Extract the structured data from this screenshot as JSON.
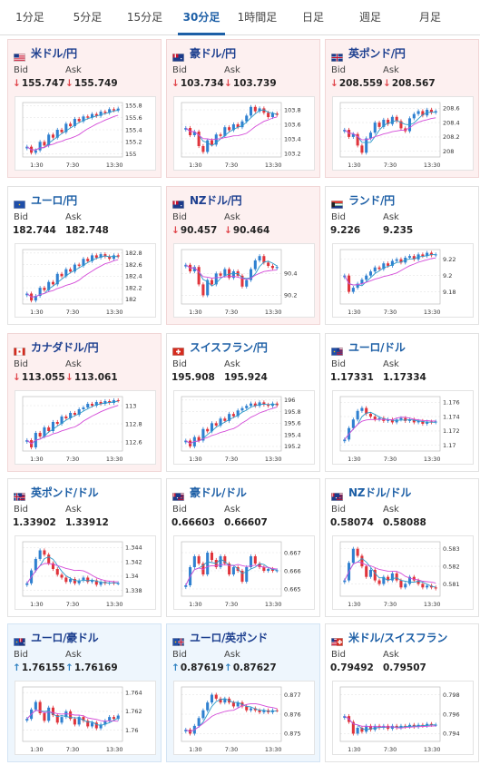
{
  "tabs": [
    {
      "label": "1分足",
      "active": false
    },
    {
      "label": "5分足",
      "active": false
    },
    {
      "label": "15分足",
      "active": false
    },
    {
      "label": "30分足",
      "active": true
    },
    {
      "label": "1時間足",
      "active": false
    },
    {
      "label": "日足",
      "active": false
    },
    {
      "label": "週足",
      "active": false
    },
    {
      "label": "月足",
      "active": false
    }
  ],
  "labels": {
    "bid": "Bid",
    "ask": "Ask"
  },
  "colors": {
    "up_candle": "#2f80d0",
    "down_candle": "#e0343b",
    "ma_short": "#2c9ac9",
    "ma_long": "#d44bd8",
    "down_arrow": "#e0454b",
    "up_arrow": "#2c7fc0"
  },
  "pairs": [
    {
      "name": "米ドル/円",
      "flag": "us",
      "bid": "155.747",
      "ask": "155.749",
      "dir": "down",
      "arrow": "↓"
    },
    {
      "name": "豪ドル/円",
      "flag": "au",
      "bid": "103.734",
      "ask": "103.739",
      "dir": "down",
      "arrow": "↓"
    },
    {
      "name": "英ポンド/円",
      "flag": "gb",
      "bid": "208.559",
      "ask": "208.567",
      "dir": "down",
      "arrow": "↓"
    },
    {
      "name": "ユーロ/円",
      "flag": "eu",
      "bid": "182.744",
      "ask": "182.748",
      "dir": "none",
      "arrow": ""
    },
    {
      "name": "NZドル/円",
      "flag": "nz",
      "bid": "90.457",
      "ask": "90.464",
      "dir": "down",
      "arrow": "↓"
    },
    {
      "name": "ランド/円",
      "flag": "za",
      "bid": "9.226",
      "ask": "9.235",
      "dir": "none",
      "arrow": ""
    },
    {
      "name": "カナダドル/円",
      "flag": "ca",
      "bid": "113.055",
      "ask": "113.061",
      "dir": "down",
      "arrow": "↓"
    },
    {
      "name": "スイスフラン/円",
      "flag": "ch",
      "bid": "195.908",
      "ask": "195.924",
      "dir": "none",
      "arrow": ""
    },
    {
      "name": "ユーロ/ドル",
      "flag": "eu-us",
      "bid": "1.17331",
      "ask": "1.17334",
      "dir": "none",
      "arrow": ""
    },
    {
      "name": "英ポンド/ドル",
      "flag": "gb-us",
      "bid": "1.33902",
      "ask": "1.33912",
      "dir": "none",
      "arrow": ""
    },
    {
      "name": "豪ドル/ドル",
      "flag": "au-us",
      "bid": "0.66603",
      "ask": "0.66607",
      "dir": "none",
      "arrow": ""
    },
    {
      "name": "NZドル/ドル",
      "flag": "nz-us",
      "bid": "0.58074",
      "ask": "0.58088",
      "dir": "none",
      "arrow": ""
    },
    {
      "name": "ユーロ/豪ドル",
      "flag": "eu-au",
      "bid": "1.76155",
      "ask": "1.76169",
      "dir": "up",
      "arrow": "↑"
    },
    {
      "name": "ユーロ/英ポンド",
      "flag": "eu-gb",
      "bid": "0.87619",
      "ask": "0.87627",
      "dir": "up",
      "arrow": "↑"
    },
    {
      "name": "米ドル/スイスフラン",
      "flag": "us-ch",
      "bid": "0.79492",
      "ask": "0.79507",
      "dir": "none",
      "arrow": ""
    }
  ],
  "chart_data": [
    {
      "type": "candlestick",
      "pair": "米ドル/円",
      "x_ticks": [
        "1:30",
        "7:30",
        "13:30"
      ],
      "y_ticks": [
        "155.8",
        "155.6",
        "155.4",
        "155.2",
        "155"
      ],
      "ylim": [
        154.95,
        155.85
      ],
      "close": [
        155.12,
        155.02,
        155.06,
        155.2,
        155.14,
        155.32,
        155.27,
        155.4,
        155.36,
        155.5,
        155.46,
        155.58,
        155.54,
        155.62,
        155.6,
        155.66,
        155.63,
        155.7,
        155.68,
        155.74,
        155.72,
        155.75
      ]
    },
    {
      "type": "candlestick",
      "pair": "豪ドル/円",
      "x_ticks": [
        "1:30",
        "7:30",
        "13:30"
      ],
      "y_ticks": [
        "103.8",
        "103.6",
        "103.4",
        "103.2"
      ],
      "ylim": [
        103.15,
        103.9
      ],
      "close": [
        103.55,
        103.45,
        103.5,
        103.3,
        103.22,
        103.38,
        103.32,
        103.46,
        103.44,
        103.56,
        103.52,
        103.6,
        103.56,
        103.64,
        103.72,
        103.84,
        103.78,
        103.82,
        103.76,
        103.7,
        103.75,
        103.73
      ]
    },
    {
      "type": "candlestick",
      "pair": "英ポンド/円",
      "x_ticks": [
        "1:30",
        "7:30",
        "13:30"
      ],
      "y_ticks": [
        "208.6",
        "208.4",
        "208.2",
        "208"
      ],
      "ylim": [
        207.92,
        208.68
      ],
      "close": [
        208.3,
        208.2,
        208.24,
        208.08,
        207.98,
        208.18,
        208.26,
        208.4,
        208.34,
        208.44,
        208.38,
        208.48,
        208.42,
        208.32,
        208.28,
        208.46,
        208.52,
        208.56,
        208.5,
        208.58,
        208.54,
        208.56
      ]
    },
    {
      "type": "candlestick",
      "pair": "ユーロ/円",
      "x_ticks": [
        "1:30",
        "7:30",
        "13:30"
      ],
      "y_ticks": [
        "182.8",
        "182.6",
        "182.4",
        "182.2",
        "182"
      ],
      "ylim": [
        181.92,
        182.86
      ],
      "close": [
        182.1,
        181.98,
        182.06,
        182.2,
        182.16,
        182.3,
        182.26,
        182.44,
        182.4,
        182.52,
        182.48,
        182.6,
        182.58,
        182.7,
        182.66,
        182.76,
        182.72,
        182.78,
        182.74,
        182.7,
        182.76,
        182.74
      ]
    },
    {
      "type": "candlestick",
      "pair": "NZドル/円",
      "x_ticks": [
        "1:30",
        "7:30",
        "13:30"
      ],
      "y_ticks": [
        "90.4",
        "90.2"
      ],
      "ylim": [
        90.12,
        90.62
      ],
      "close": [
        90.48,
        90.42,
        90.46,
        90.3,
        90.2,
        90.34,
        90.3,
        90.4,
        90.38,
        90.44,
        90.36,
        90.42,
        90.38,
        90.28,
        90.34,
        90.44,
        90.52,
        90.56,
        90.5,
        90.47,
        90.45,
        90.46
      ]
    },
    {
      "type": "candlestick",
      "pair": "ランド/円",
      "x_ticks": [
        "1:30",
        "7:30",
        "13:30"
      ],
      "y_ticks": [
        "9.22",
        "9.2",
        "9.18"
      ],
      "ylim": [
        9.165,
        9.232
      ],
      "close": [
        9.2,
        9.18,
        9.185,
        9.19,
        9.195,
        9.2,
        9.205,
        9.21,
        9.208,
        9.215,
        9.212,
        9.218,
        9.22,
        9.216,
        9.222,
        9.224,
        9.22,
        9.226,
        9.224,
        9.228,
        9.225,
        9.226
      ]
    },
    {
      "type": "candlestick",
      "pair": "カナダドル/円",
      "x_ticks": [
        "1:30",
        "7:30",
        "13:30"
      ],
      "y_ticks": [
        "113",
        "112.8",
        "112.6"
      ],
      "ylim": [
        112.5,
        113.1
      ],
      "close": [
        112.62,
        112.54,
        112.7,
        112.66,
        112.76,
        112.72,
        112.82,
        112.8,
        112.88,
        112.86,
        112.92,
        112.9,
        112.96,
        112.98,
        113.02,
        113.0,
        113.04,
        113.02,
        113.05,
        113.03,
        113.06,
        113.055
      ]
    },
    {
      "type": "candlestick",
      "pair": "スイスフラン/円",
      "x_ticks": [
        "1:30",
        "7:30",
        "13:30"
      ],
      "y_ticks": [
        "196",
        "195.8",
        "195.6",
        "195.4",
        "195.2"
      ],
      "ylim": [
        195.12,
        196.06
      ],
      "close": [
        195.3,
        195.2,
        195.36,
        195.3,
        195.5,
        195.46,
        195.6,
        195.56,
        195.68,
        195.64,
        195.76,
        195.72,
        195.82,
        195.86,
        195.9,
        195.94,
        195.9,
        195.96,
        195.92,
        195.9,
        195.94,
        195.91
      ]
    },
    {
      "type": "candlestick",
      "pair": "ユーロ/ドル",
      "x_ticks": [
        "1:30",
        "7:30",
        "13:30"
      ],
      "y_ticks": [
        "1.176",
        "1.174",
        "1.172",
        "1.17"
      ],
      "ylim": [
        1.1692,
        1.1768
      ],
      "close": [
        1.1708,
        1.1724,
        1.1736,
        1.1748,
        1.1752,
        1.1744,
        1.174,
        1.1736,
        1.1738,
        1.1734,
        1.1736,
        1.1732,
        1.1736,
        1.1738,
        1.1734,
        1.1736,
        1.1732,
        1.1734,
        1.173,
        1.1733,
        1.1732,
        1.17331
      ]
    },
    {
      "type": "candlestick",
      "pair": "英ポンド/ドル",
      "x_ticks": [
        "1:30",
        "7:30",
        "13:30"
      ],
      "y_ticks": [
        "1.344",
        "1.342",
        "1.34",
        "1.338"
      ],
      "ylim": [
        1.3372,
        1.3448
      ],
      "close": [
        1.339,
        1.3408,
        1.3424,
        1.3436,
        1.343,
        1.3418,
        1.341,
        1.3402,
        1.3398,
        1.3392,
        1.3396,
        1.339,
        1.3394,
        1.3398,
        1.3392,
        1.3394,
        1.3388,
        1.3392,
        1.339,
        1.3391,
        1.339,
        1.33902
      ]
    },
    {
      "type": "candlestick",
      "pair": "豪ドル/ドル",
      "x_ticks": [
        "1:30",
        "7:30",
        "13:30"
      ],
      "y_ticks": [
        "0.667",
        "0.666",
        "0.665"
      ],
      "ylim": [
        0.6646,
        0.6676
      ],
      "close": [
        0.6652,
        0.6662,
        0.6668,
        0.6664,
        0.6658,
        0.667,
        0.6666,
        0.6662,
        0.6668,
        0.6664,
        0.6658,
        0.6662,
        0.666,
        0.6654,
        0.6662,
        0.6668,
        0.6664,
        0.6662,
        0.666,
        0.6661,
        0.666,
        0.66603
      ]
    },
    {
      "type": "candlestick",
      "pair": "NZドル/ドル",
      "x_ticks": [
        "1:30",
        "7:30",
        "13:30"
      ],
      "y_ticks": [
        "0.583",
        "0.582",
        "0.581"
      ],
      "ylim": [
        0.5803,
        0.5834
      ],
      "close": [
        0.5812,
        0.5822,
        0.583,
        0.5826,
        0.582,
        0.5814,
        0.5818,
        0.5812,
        0.581,
        0.5814,
        0.5812,
        0.5816,
        0.5812,
        0.5808,
        0.581,
        0.5814,
        0.5812,
        0.581,
        0.5808,
        0.5809,
        0.5808,
        0.58074
      ]
    },
    {
      "type": "candlestick",
      "pair": "ユーロ/豪ドル",
      "x_ticks": [
        "1:30",
        "7:30",
        "13:30"
      ],
      "y_ticks": [
        "1.764",
        "1.762",
        "1.76"
      ],
      "ylim": [
        1.7588,
        1.7646
      ],
      "close": [
        1.7612,
        1.7622,
        1.763,
        1.7618,
        1.761,
        1.7624,
        1.7616,
        1.7608,
        1.7614,
        1.762,
        1.7612,
        1.7606,
        1.7614,
        1.761,
        1.7604,
        1.7608,
        1.7602,
        1.7606,
        1.761,
        1.7614,
        1.7612,
        1.76155
      ]
    },
    {
      "type": "candlestick",
      "pair": "ユーロ/英ポンド",
      "x_ticks": [
        "1:30",
        "7:30",
        "13:30"
      ],
      "y_ticks": [
        "0.877",
        "0.876",
        "0.875"
      ],
      "ylim": [
        0.8746,
        0.8774
      ],
      "close": [
        0.8752,
        0.875,
        0.8754,
        0.8758,
        0.8762,
        0.8766,
        0.877,
        0.8768,
        0.8766,
        0.8768,
        0.8766,
        0.8764,
        0.8766,
        0.8764,
        0.8762,
        0.8763,
        0.8762,
        0.8761,
        0.8762,
        0.8761,
        0.8762,
        0.87619
      ]
    },
    {
      "type": "candlestick",
      "pair": "米ドル/スイスフラン",
      "x_ticks": [
        "1:30",
        "7:30",
        "13:30"
      ],
      "y_ticks": [
        "0.798",
        "0.796",
        "0.794"
      ],
      "ylim": [
        0.7932,
        0.7988
      ],
      "close": [
        0.7958,
        0.7952,
        0.794,
        0.7946,
        0.7942,
        0.7948,
        0.7944,
        0.7948,
        0.7946,
        0.7948,
        0.7945,
        0.7948,
        0.7946,
        0.7948,
        0.7947,
        0.7949,
        0.7947,
        0.7949,
        0.7948,
        0.795,
        0.7949,
        0.79492
      ]
    }
  ]
}
